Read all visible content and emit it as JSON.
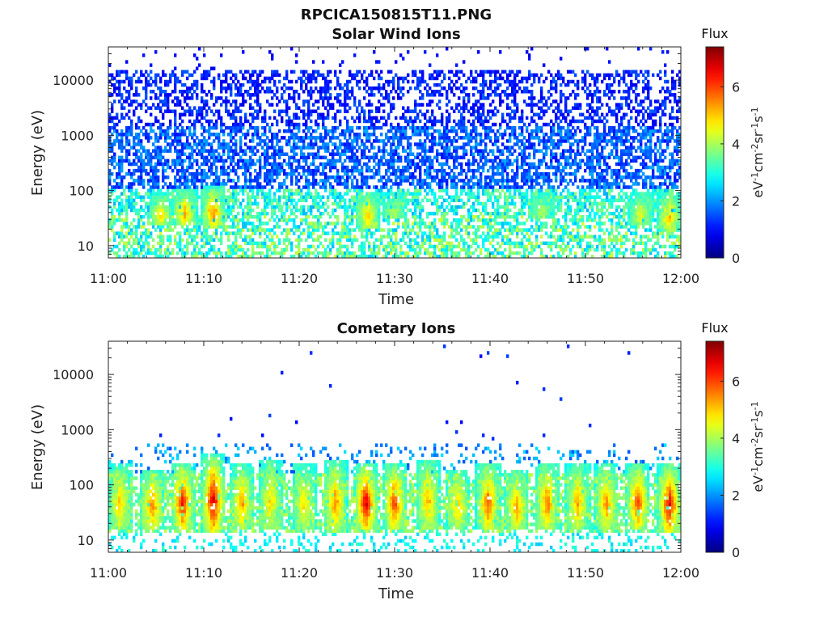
{
  "figure_title": "RPCICA150815T11.PNG",
  "chart_data": [
    {
      "type": "heatmap",
      "title": "Solar Wind Ions",
      "xlabel": "Time",
      "ylabel": "Energy (eV)",
      "x_ticks": [
        "11:00",
        "11:10",
        "11:20",
        "11:30",
        "11:40",
        "11:50",
        "12:00"
      ],
      "x_range_minutes": [
        0,
        60
      ],
      "y_scale": "log",
      "y_ticks": [
        "10",
        "100",
        "1000",
        "10000"
      ],
      "y_range": [
        6,
        40000
      ],
      "colorbar": {
        "title": "Flux",
        "label": "eV-1cm-2sr-1s-1",
        "ticks": [
          "0",
          "2",
          "4",
          "6"
        ],
        "range": [
          0,
          7.4
        ],
        "colormap": "jet"
      },
      "bands": [
        {
          "e_min": 6,
          "e_max": 35,
          "flux_min": 2.3,
          "flux_max": 4.3,
          "fill": 0.55
        },
        {
          "e_min": 20,
          "e_max": 110,
          "flux_min": 2.2,
          "flux_max": 3.8,
          "fill": 0.6
        },
        {
          "e_min": 100,
          "e_max": 1500,
          "flux_min": 1.0,
          "flux_max": 2.2,
          "fill": 0.6
        },
        {
          "e_min": 1500,
          "e_max": 15000,
          "flux_min": 0.7,
          "flux_max": 1.6,
          "fill": 0.42
        },
        {
          "e_min": 15000,
          "e_max": 40000,
          "flux_min": 0.7,
          "flux_max": 1.2,
          "fill": 0.04
        }
      ],
      "bursts": [
        {
          "t": 5.5,
          "e_min": 25,
          "e_max": 90,
          "peak": 5.0
        },
        {
          "t": 8.0,
          "e_min": 25,
          "e_max": 110,
          "peak": 5.4
        },
        {
          "t": 11.0,
          "e_min": 22,
          "e_max": 130,
          "peak": 5.8
        },
        {
          "t": 27.2,
          "e_min": 22,
          "e_max": 100,
          "peak": 5.2
        },
        {
          "t": 30.0,
          "e_min": 30,
          "e_max": 90,
          "peak": 4.2
        },
        {
          "t": 45.5,
          "e_min": 30,
          "e_max": 100,
          "peak": 4.0
        },
        {
          "t": 55.8,
          "e_min": 25,
          "e_max": 90,
          "peak": 4.6
        },
        {
          "t": 58.8,
          "e_min": 18,
          "e_max": 100,
          "peak": 5.2
        }
      ]
    },
    {
      "type": "heatmap",
      "title": "Cometary Ions",
      "xlabel": "Time",
      "ylabel": "Energy (eV)",
      "x_ticks": [
        "11:00",
        "11:10",
        "11:20",
        "11:30",
        "11:40",
        "11:50",
        "12:00"
      ],
      "x_range_minutes": [
        0,
        60
      ],
      "y_scale": "log",
      "y_ticks": [
        "10",
        "100",
        "1000",
        "10000"
      ],
      "y_range": [
        6,
        40000
      ],
      "colorbar": {
        "title": "Flux",
        "label": "eV-1cm-2sr-1s-1",
        "ticks": [
          "0",
          "2",
          "4",
          "6"
        ],
        "range": [
          0,
          7.4
        ],
        "colormap": "jet"
      },
      "bands": [
        {
          "e_min": 6,
          "e_max": 13,
          "flux_min": 2.4,
          "flux_max": 3.2,
          "fill": 0.18
        },
        {
          "e_min": 13,
          "e_max": 160,
          "flux_min": 3.0,
          "flux_max": 4.2,
          "fill": 0.5
        },
        {
          "e_min": 160,
          "e_max": 600,
          "flux_min": 1.5,
          "flux_max": 2.6,
          "fill": 0.12
        },
        {
          "e_min": 600,
          "e_max": 40000,
          "flux_min": 0.9,
          "flux_max": 1.4,
          "fill": 0.004
        }
      ],
      "bursts": [
        {
          "t": 1.2,
          "e_min": 15,
          "e_max": 250,
          "peak": 5.2
        },
        {
          "t": 4.6,
          "e_min": 15,
          "e_max": 200,
          "peak": 5.8
        },
        {
          "t": 7.8,
          "e_min": 15,
          "e_max": 250,
          "peak": 6.6
        },
        {
          "t": 11.0,
          "e_min": 13,
          "e_max": 350,
          "peak": 7.0
        },
        {
          "t": 14.0,
          "e_min": 15,
          "e_max": 250,
          "peak": 5.6
        },
        {
          "t": 17.0,
          "e_min": 15,
          "e_max": 300,
          "peak": 5.0
        },
        {
          "t": 20.5,
          "e_min": 15,
          "e_max": 250,
          "peak": 5.0
        },
        {
          "t": 23.8,
          "e_min": 13,
          "e_max": 300,
          "peak": 5.6
        },
        {
          "t": 27.0,
          "e_min": 15,
          "e_max": 250,
          "peak": 7.0
        },
        {
          "t": 30.0,
          "e_min": 15,
          "e_max": 250,
          "peak": 6.2
        },
        {
          "t": 33.5,
          "e_min": 15,
          "e_max": 300,
          "peak": 5.4
        },
        {
          "t": 36.6,
          "e_min": 15,
          "e_max": 200,
          "peak": 5.2
        },
        {
          "t": 39.8,
          "e_min": 15,
          "e_max": 250,
          "peak": 6.0
        },
        {
          "t": 42.8,
          "e_min": 15,
          "e_max": 200,
          "peak": 5.6
        },
        {
          "t": 46.0,
          "e_min": 15,
          "e_max": 250,
          "peak": 5.8
        },
        {
          "t": 49.2,
          "e_min": 15,
          "e_max": 250,
          "peak": 5.4
        },
        {
          "t": 52.2,
          "e_min": 15,
          "e_max": 250,
          "peak": 5.6
        },
        {
          "t": 55.5,
          "e_min": 15,
          "e_max": 250,
          "peak": 6.2
        },
        {
          "t": 58.8,
          "e_min": 13,
          "e_max": 250,
          "peak": 6.8
        }
      ]
    }
  ]
}
